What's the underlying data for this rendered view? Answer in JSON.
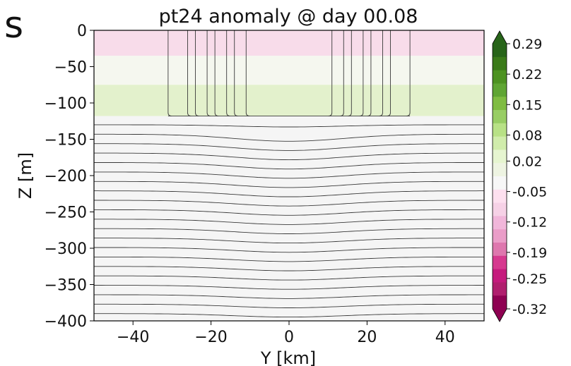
{
  "fragment_text": "s",
  "chart_data": {
    "type": "heatmap",
    "title": "pt24 anomaly @ day 00.08",
    "xlabel": "Y [km]",
    "ylabel": "Z [m]",
    "xlim": [
      -50,
      50
    ],
    "ylim": [
      -400,
      0
    ],
    "xticks": [
      -40,
      -20,
      0,
      20,
      40
    ],
    "xtick_labels": [
      "−40",
      "−20",
      "0",
      "20",
      "40"
    ],
    "yticks": [
      0,
      -50,
      -100,
      -150,
      -200,
      -250,
      -300,
      -350,
      -400
    ],
    "ytick_labels": [
      "0",
      "−50",
      "−100",
      "−150",
      "−200",
      "−250",
      "−300",
      "−350",
      "−400"
    ],
    "colorbar": {
      "ticks": [
        0.29,
        0.22,
        0.15,
        0.08,
        0.02,
        -0.05,
        -0.12,
        -0.19,
        -0.25,
        -0.32
      ],
      "tick_labels": [
        "0.29",
        "0.22",
        "0.15",
        "0.08",
        "0.02",
        "-0.05",
        "-0.12",
        "-0.19",
        "-0.25",
        "-0.32"
      ],
      "range": [
        -0.32,
        0.29
      ],
      "extend": "both",
      "colormap": "PiYG",
      "colors": [
        "#8e0152",
        "#b01f6e",
        "#c51b7d",
        "#d6398f",
        "#de77ae",
        "#ea9dc8",
        "#f1b6da",
        "#f6d1e6",
        "#fde0ef",
        "#f7f7f7",
        "#eef4e2",
        "#e6f5d0",
        "#d0ecab",
        "#b8e186",
        "#98cd64",
        "#7fbc41",
        "#5fa533",
        "#4d9221",
        "#3a7a19",
        "#276419"
      ]
    },
    "anomaly_bands": [
      {
        "z_range": [
          0,
          -35
        ],
        "value": -0.05,
        "color": "#f8dcea"
      },
      {
        "z_range": [
          -35,
          -75
        ],
        "value": 0.0,
        "color": "#f5f7ef"
      },
      {
        "z_range": [
          -75,
          -118
        ],
        "value": 0.06,
        "color": "#e3f1cc"
      },
      {
        "z_range": [
          -118,
          -400
        ],
        "value": 0.0,
        "color": "#f5f5f5"
      }
    ],
    "mixed_layer_depth_m": -118,
    "vertical_contour_y_km": [
      -31,
      -26,
      -24,
      -21,
      -19,
      -16,
      -14,
      -11,
      11,
      14,
      16,
      19,
      21,
      24,
      26,
      31
    ],
    "horizontal_contour_z_m": [
      -130,
      -143,
      -156,
      -169,
      -182,
      -195,
      -208,
      -221,
      -234,
      -247,
      -260,
      -273,
      -286,
      -299,
      -312,
      -325,
      -338,
      -351,
      -364,
      -377,
      -390
    ],
    "contour_dip_m": 10,
    "contour_dip_halfwidth_km": 28,
    "contour_color": "#3a3a3a"
  }
}
